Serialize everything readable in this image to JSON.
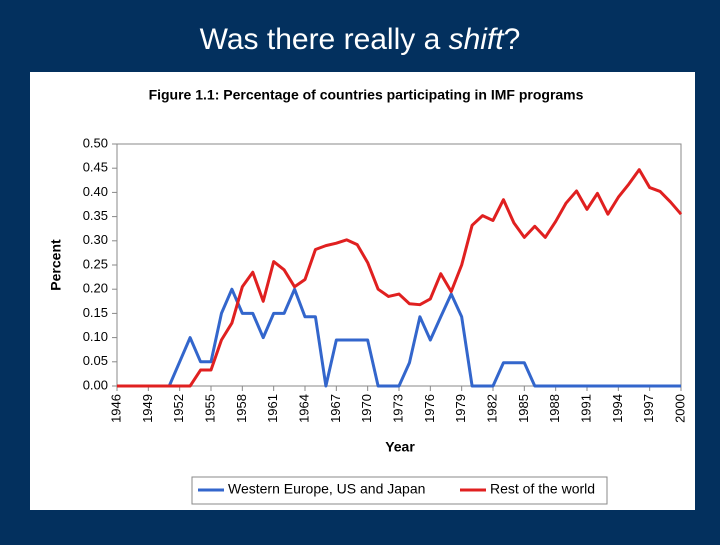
{
  "slide_title": [
    {
      "text": "Was there really a "
    },
    {
      "text": "shift",
      "italic": true
    },
    {
      "text": "?"
    }
  ],
  "chart_data": {
    "type": "line",
    "title": "Figure 1.1: Percentage of countries participating in IMF programs",
    "x_label": "Year",
    "y_label": "Percent",
    "x": [
      1946,
      1947,
      1948,
      1949,
      1950,
      1951,
      1952,
      1953,
      1954,
      1955,
      1956,
      1957,
      1958,
      1959,
      1960,
      1961,
      1962,
      1963,
      1964,
      1965,
      1966,
      1967,
      1968,
      1969,
      1970,
      1971,
      1972,
      1973,
      1974,
      1975,
      1976,
      1977,
      1978,
      1979,
      1980,
      1981,
      1982,
      1983,
      1984,
      1985,
      1986,
      1987,
      1988,
      1989,
      1990,
      1991,
      1992,
      1993,
      1994,
      1995,
      1996,
      1997,
      1998,
      1999,
      2000
    ],
    "xlim": [
      1946,
      2000
    ],
    "xticks": [
      1946,
      1949,
      1952,
      1955,
      1958,
      1961,
      1964,
      1967,
      1970,
      1973,
      1976,
      1979,
      1982,
      1985,
      1988,
      1991,
      1994,
      1997,
      2000
    ],
    "ylim": [
      0,
      0.5
    ],
    "yticks": [
      {
        "value": 0,
        "label": "0.00"
      },
      {
        "value": 0.05,
        "label": "0.05"
      },
      {
        "value": 0.1,
        "label": "0.10"
      },
      {
        "value": 0.15,
        "label": "0.15"
      },
      {
        "value": 0.2,
        "label": "0.20"
      },
      {
        "value": 0.25,
        "label": "0.25"
      },
      {
        "value": 0.3,
        "label": "0.30"
      },
      {
        "value": 0.35,
        "label": "0.35"
      },
      {
        "value": 0.4,
        "label": "0.40"
      },
      {
        "value": 0.45,
        "label": "0.45"
      },
      {
        "value": 0.5,
        "label": "0.50"
      }
    ],
    "grid": false,
    "legend": "bottom",
    "series": [
      {
        "name": "Western Europe, US and Japan",
        "color": "#3366cc",
        "values": [
          0,
          0,
          0,
          0,
          0,
          0,
          0.05,
          0.1,
          0.05,
          0.05,
          0.15,
          0.2,
          0.15,
          0.15,
          0.1,
          0.15,
          0.15,
          0.2,
          0.143,
          0.143,
          0,
          0.095,
          0.095,
          0.095,
          0.095,
          0,
          0,
          0,
          0.048,
          0.143,
          0.095,
          0.143,
          0.19,
          0.143,
          0,
          0,
          0,
          0.048,
          0.048,
          0.048,
          0,
          0,
          0,
          0,
          0,
          0,
          0,
          0,
          0,
          0,
          0,
          0,
          0,
          0,
          0
        ]
      },
      {
        "name": "Rest of the world",
        "color": "#e02020",
        "values": [
          0,
          0,
          0,
          0,
          0,
          0,
          0,
          0,
          0.033,
          0.033,
          0.095,
          0.13,
          0.205,
          0.235,
          0.175,
          0.257,
          0.24,
          0.205,
          0.22,
          0.282,
          0.29,
          0.295,
          0.302,
          0.292,
          0.255,
          0.2,
          0.185,
          0.19,
          0.17,
          0.168,
          0.18,
          0.232,
          0.195,
          0.25,
          0.332,
          0.352,
          0.342,
          0.385,
          0.337,
          0.307,
          0.33,
          0.307,
          0.34,
          0.378,
          0.403,
          0.365,
          0.398,
          0.355,
          0.39,
          0.417,
          0.447,
          0.41,
          0.402,
          0.38,
          0.355
        ]
      }
    ]
  }
}
